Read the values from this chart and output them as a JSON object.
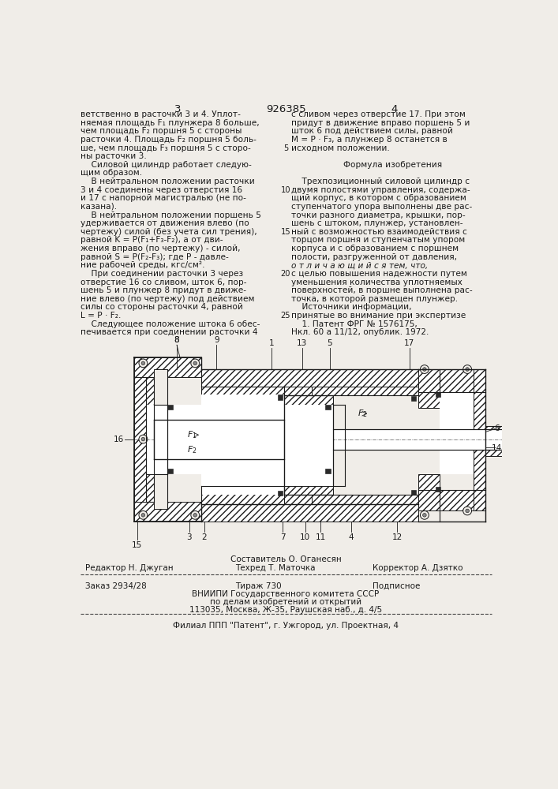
{
  "page_number_left": "3",
  "patent_number": "926385",
  "page_number_right": "4",
  "left_text": [
    "ветственно в расточки 3 и 4. Уплот-",
    "няемая площадь F₁ плунжера 8 больше,",
    "чем площадь F₂ поршня 5 с стороны",
    "расточки 4. Площадь F₂ поршня 5 боль-",
    "ше, чем площадь F₃ поршня 5 с сторо-",
    "ны расточки 3.",
    "    Силовой цилиндр работает следую-",
    "щим образом.",
    "    В нейтральном положении расточки",
    "3 и 4 соединены через отверстия 16",
    "и 17 с напорной магистралью (не по-",
    "казана).",
    "    В нейтральном положении поршень 5",
    "удерживается от движения влево (по",
    "чертежу) силой (без учета сил трения),",
    "равной K = P(F₁+F₃-F₂), а от дви-",
    "жения вправо (по чертежу) - силой,",
    "равной S = P(F₂-F₃); где P - давле-",
    "ние рабочей среды, кгс/см².",
    "    При соединении расточки 3 через",
    "отверстие 16 со сливом, шток 6, пор-",
    "шень 5 и плунжер 8 придут в движе-",
    "ние влево (по чертежу) под действием",
    "силы со стороны расточки 4, равной",
    "L = P · F₂.",
    "    Следующее положение штока 6 обес-",
    "печивается при соединении расточки 4"
  ],
  "right_text": [
    "с сливом через отверстие 17. При этом",
    "придут в движение вправо поршень 5 и",
    "шток 6 под действием силы, равной",
    "M = P · F₃, а плунжер 8 останется в",
    "исходном положении.",
    "",
    "Формула изобретения",
    "",
    "    Трехпозиционный силовой цилиндр с",
    "двумя полостями управления, содержа-",
    "щий корпус, в котором с образованием",
    "ступенчатого упора выполнены две рас-",
    "точки разного диаметра, крышки, пор-",
    "шень с штоком, плунжер, установлен-",
    "ный с возможностью взаимодействия с",
    "торцом поршня и ступенчатым упором",
    "корпуса и с образованием с поршнем",
    "полости, разгруженной от давления,",
    "о т л и ч а ю щ и й с я тем, что,",
    "с целью повышения надежности путем",
    "уменьшения количества уплотняемых",
    "поверхностей, в поршне выполнена рас-",
    "точка, в которой размещен плунжер.",
    "    Источники информации,",
    "принятые во внимание при экспертизе",
    "    1. Патент ФРГ № 1576175,",
    "Нкл. 60 a 11/12, опублик. 1972."
  ],
  "footer_composer": "Составитель О. Оганесян",
  "footer_editor": "Редактор Н. Джуган",
  "footer_techred": "Техред Т. Маточка",
  "footer_corrector": "Корректор А. Дзятко",
  "footer_order": "Заказ 2934/28",
  "footer_print": "Тираж 730",
  "footer_type": "Подписное",
  "footer_org1": "ВНИИПИ Государственного комитета СССР",
  "footer_org2": "по делам изобретений и открытий",
  "footer_addr": "113035, Москва, Ж-35, Раушская наб., д. 4/5",
  "footer_branch": "Филиал ППП \"Патент\", г. Ужгород, ул. Проектная, 4",
  "bg_color": "#f0ede8",
  "text_color": "#1a1a1a"
}
